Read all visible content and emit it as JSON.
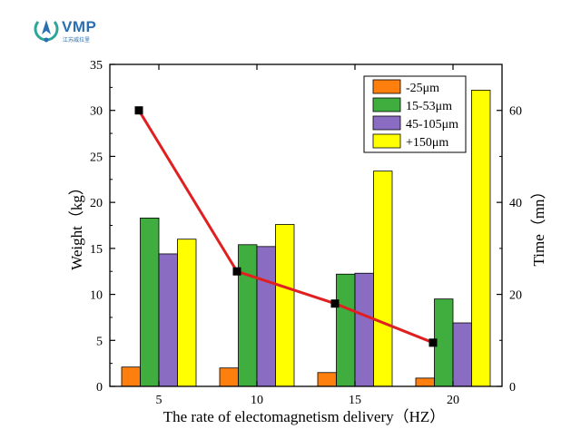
{
  "logo": {
    "text": "VMP",
    "subtext": "江苏威拉里",
    "colors": {
      "blue": "#2a6fb0",
      "teal": "#2fa59a"
    }
  },
  "chart_data": {
    "type": "bar",
    "categories": [
      "5",
      "10",
      "15",
      "20"
    ],
    "xlabel": "The rate of electomagnetism delivery（HZ）",
    "ylabel": "Weight（kg）",
    "ylabel_right": "Time（mn）",
    "ylim": [
      0,
      35
    ],
    "yticks": [
      0,
      5,
      10,
      15,
      20,
      25,
      30,
      35
    ],
    "ylim_right": [
      0,
      70
    ],
    "yticks_right": [
      0,
      20,
      40,
      60
    ],
    "series": [
      {
        "name": "-25μm",
        "color": "#ff7f0e",
        "values": [
          2.1,
          2.0,
          1.5,
          0.9
        ]
      },
      {
        "name": "15-53μm",
        "color": "#3fae3f",
        "values": [
          18.3,
          15.4,
          12.2,
          9.5
        ]
      },
      {
        "name": "45-105μm",
        "color": "#8a6cc2",
        "values": [
          14.4,
          15.2,
          12.3,
          6.9
        ]
      },
      {
        "name": "+150μm",
        "color": "#ffff00",
        "values": [
          16.0,
          17.6,
          23.4,
          32.2
        ]
      }
    ],
    "line_series": {
      "axis": "right",
      "color": "#e02020",
      "marker_color": "#000000",
      "values": [
        60,
        25,
        18,
        9.5
      ]
    },
    "legend_position": "top-right",
    "grid": false
  }
}
